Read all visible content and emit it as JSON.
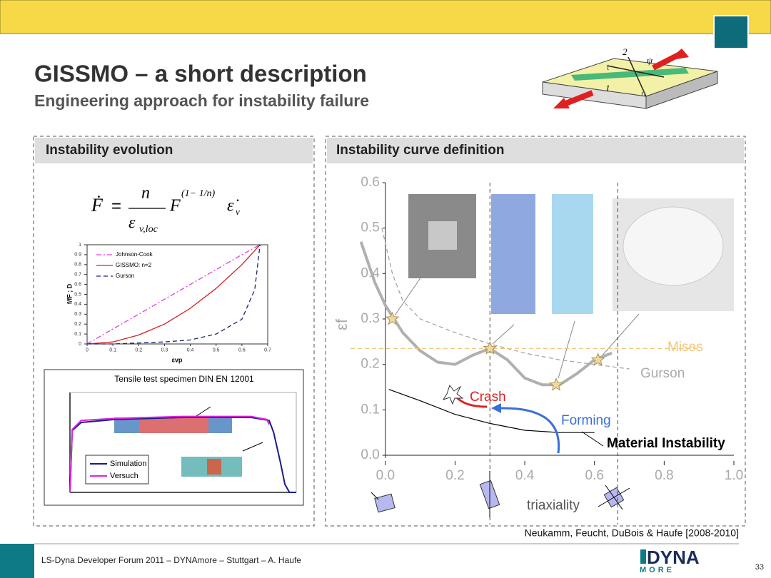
{
  "header": {
    "title": "GISSMO – a short description",
    "subtitle": "Engineering approach for instability failure"
  },
  "diagram": {
    "labels": [
      "2",
      "ψ",
      "t",
      "1",
      "n"
    ]
  },
  "left_panel": {
    "title": "Instability evolution",
    "formula": {
      "lhs": "Ḟ",
      "equals": "=",
      "numerator": "n",
      "denominator": "ε",
      "denominator_sub": "v,loc",
      "base": "F",
      "exponent": "(1− 1/n)",
      "rate": "ε̇",
      "rate_sub": "v"
    }
  },
  "right_panel": {
    "title": "Instability curve definition"
  },
  "chart_data": [
    {
      "type": "line",
      "xlabel": "εvp",
      "ylabel": "f/fF ; D",
      "xlim": [
        0,
        0.7
      ],
      "ylim": [
        0,
        1
      ],
      "xticks": [
        0,
        0.1,
        0.2,
        0.3,
        0.4,
        0.5,
        0.6,
        0.7
      ],
      "yticks": [
        0,
        0.1,
        0.2,
        0.3,
        0.4,
        0.5,
        0.6,
        0.7,
        0.8,
        0.9,
        1
      ],
      "legend": "upper left",
      "series": [
        {
          "name": "Johnson-Cook",
          "color": "#e040e0",
          "style": "dashdot",
          "x": [
            0,
            0.1,
            0.2,
            0.3,
            0.4,
            0.5,
            0.6,
            0.67
          ],
          "values": [
            0,
            0.15,
            0.3,
            0.45,
            0.6,
            0.75,
            0.9,
            1
          ]
        },
        {
          "name": "GISSMO: n=2",
          "color": "#d42020",
          "style": "solid",
          "x": [
            0,
            0.1,
            0.2,
            0.3,
            0.4,
            0.5,
            0.6,
            0.67
          ],
          "values": [
            0,
            0.02,
            0.09,
            0.2,
            0.36,
            0.56,
            0.8,
            1
          ]
        },
        {
          "name": "Gurson",
          "color": "#1a237e",
          "style": "dashed",
          "x": [
            0,
            0.1,
            0.2,
            0.3,
            0.4,
            0.5,
            0.6,
            0.65,
            0.67
          ],
          "values": [
            0,
            0,
            0.01,
            0.02,
            0.04,
            0.1,
            0.25,
            0.55,
            1
          ]
        }
      ]
    },
    {
      "type": "line",
      "title": "Tensile test specimen DIN EN 12001",
      "xlim": [
        0,
        100
      ],
      "ylim": [
        0,
        100
      ],
      "legend": "lower left",
      "series": [
        {
          "name": "Simulation",
          "color": "#1a1a8c",
          "style": "solid",
          "x": [
            0,
            1,
            5,
            20,
            50,
            80,
            88,
            90,
            93,
            95,
            97,
            100
          ],
          "values": [
            0,
            62,
            70,
            73,
            75,
            75,
            72,
            60,
            30,
            8,
            0,
            0
          ]
        },
        {
          "name": "Versuch",
          "color": "#e020e0",
          "style": "solid",
          "x": [
            0,
            1,
            5,
            20,
            50,
            80,
            87,
            88
          ],
          "values": [
            0,
            63,
            72,
            74,
            76,
            76,
            73,
            68
          ]
        }
      ]
    },
    {
      "type": "line",
      "xlabel": "triaxiality",
      "ylabel": "εf",
      "xlim": [
        -0.1,
        1
      ],
      "ylim": [
        0,
        0.6
      ],
      "xticks": [
        {
          "value": 0,
          "label": "0.0"
        },
        0.2,
        0.4,
        0.6,
        0.8,
        {
          "value": 1,
          "label": "1.0"
        }
      ],
      "yticks": [
        {
          "value": 0,
          "label": "0.0"
        },
        0.1,
        0.2,
        0.3,
        0.4,
        0.5,
        0.6
      ],
      "series": [
        {
          "color": "#b0b0b0",
          "style": "thick",
          "x": [
            -0.07,
            -0.03,
            0,
            0.05,
            0.1,
            0.15,
            0.2,
            0.25,
            0.3,
            0.35,
            0.4,
            0.45,
            0.5,
            0.55,
            0.6,
            0.65
          ],
          "values": [
            0.47,
            0.38,
            0.33,
            0.27,
            0.23,
            0.205,
            0.2,
            0.22,
            0.235,
            0.21,
            0.17,
            0.155,
            0.155,
            0.18,
            0.21,
            0.225
          ]
        },
        {
          "name": "Gurson",
          "color": "#a0a0a0",
          "style": "dashed",
          "x": [
            -0.01,
            0.02,
            0.05,
            0.1,
            0.2,
            0.3,
            0.4,
            0.5,
            0.6,
            0.7
          ],
          "values": [
            0.5,
            0.4,
            0.34,
            0.3,
            0.27,
            0.245,
            0.225,
            0.21,
            0.2,
            0.19
          ]
        },
        {
          "name": "Mises",
          "color": "#f5c67a",
          "style": "dashed",
          "x": [
            -0.1,
            0.9
          ],
          "values": [
            0.235,
            0.235
          ]
        },
        {
          "name": "Material Instability",
          "color": "#000000",
          "style": "solid",
          "x": [
            0.01,
            0.1,
            0.2,
            0.3,
            0.4,
            0.5,
            0.6
          ],
          "values": [
            0.145,
            0.12,
            0.09,
            0.07,
            0.055,
            0.05,
            0.05
          ]
        }
      ],
      "markers": {
        "color": "#f0d9a0",
        "x": [
          0.02,
          0.3,
          0.49,
          0.61
        ],
        "values": [
          0.3,
          0.235,
          0.155,
          0.21
        ]
      },
      "reference_lines_x": [
        0.3,
        0.667
      ],
      "annotations": [
        "Crash",
        "Forming"
      ]
    }
  ],
  "citation": "Neukamm, Feucht, DuBois & Haufe [2008-2010]",
  "footer": {
    "text": "LS-Dyna Developer Forum 2011 – DYNAmore – Stuttgart – A. Haufe",
    "page": "33",
    "logo": [
      "DYNA",
      "MORE"
    ]
  }
}
